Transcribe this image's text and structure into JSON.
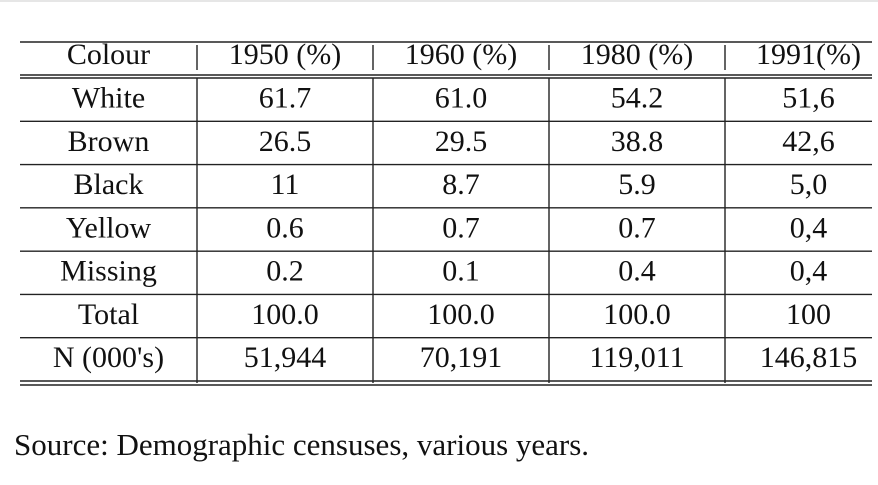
{
  "table": {
    "header": [
      "Colour",
      "1950 (%)",
      "1960 (%)",
      "1980 (%)",
      "1991(%)"
    ],
    "rows": [
      [
        "White",
        "61.7",
        "61.0",
        "54.2",
        "51,6"
      ],
      [
        "Brown",
        "26.5",
        "29.5",
        "38.8",
        "42,6"
      ],
      [
        "Black",
        "11",
        "8.7",
        "5.9",
        "5,0"
      ],
      [
        "Yellow",
        "0.6",
        "0.7",
        "0.7",
        "0,4"
      ],
      [
        "Missing",
        "0.2",
        "0.1",
        "0.4",
        "0,4"
      ],
      [
        "Total",
        "100.0",
        "100.0",
        "100.0",
        "100"
      ],
      [
        "N (000's)",
        "51,944",
        "70,191",
        "119,011",
        "146,815"
      ]
    ]
  },
  "source": "Source: Demographic censuses, various years."
}
